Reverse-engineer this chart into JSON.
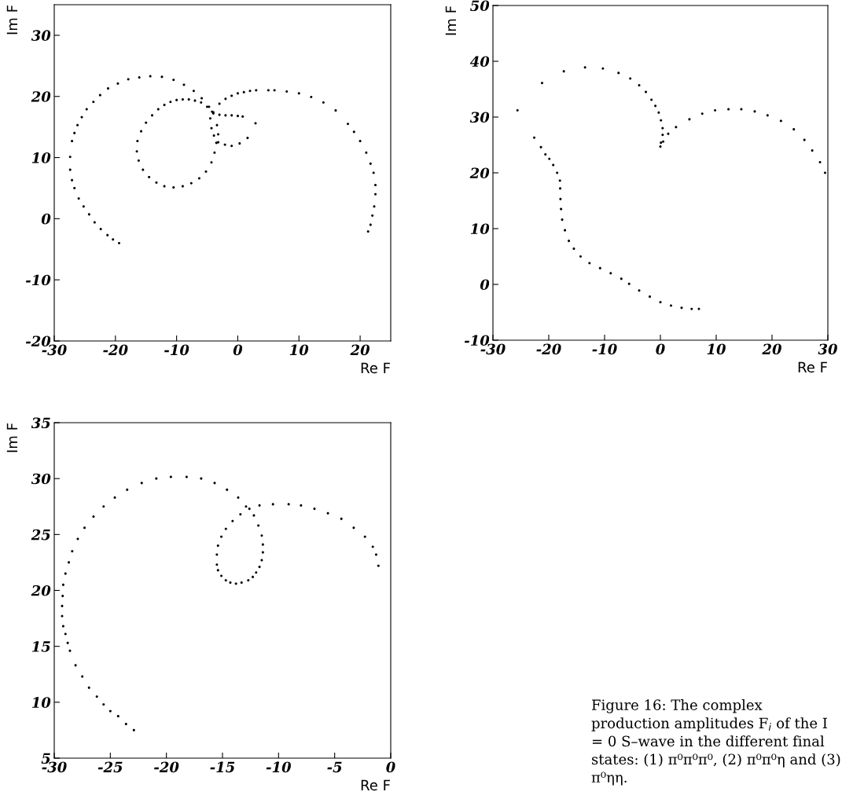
{
  "chart_data": [
    {
      "type": "scatter",
      "xlabel": "Re F",
      "ylabel": "Im F",
      "xlim": [
        -30,
        25
      ],
      "ylim": [
        -20,
        35
      ],
      "xticks": [
        -30,
        -20,
        -10,
        0,
        10,
        20
      ],
      "yticks": [
        -20,
        -10,
        0,
        10,
        20,
        30
      ],
      "grid": false,
      "marker": "circle",
      "series": [
        {
          "color": "#000000",
          "x": [
            -19.4,
            -20.4,
            -21.3,
            -22.4,
            -23.4,
            -24.3,
            -25.2,
            -26.0,
            -26.7,
            -27.1,
            -27.4,
            -27.4,
            -27.1,
            -26.7,
            -26.2,
            -25.5,
            -24.7,
            -23.6,
            -22.5,
            -21.2,
            -19.6,
            -17.9,
            -16.1,
            -14.3,
            -12.4,
            -10.5,
            -8.8,
            -7.2,
            -5.9,
            -4.7,
            -4.2
          ],
          "values": [
            -4.0,
            -3.4,
            -2.7,
            -1.7,
            -0.6,
            0.7,
            2.0,
            3.3,
            5.0,
            6.3,
            8.0,
            10.1,
            12.7,
            14.0,
            15.3,
            16.6,
            17.9,
            19.1,
            20.2,
            21.3,
            22.1,
            22.8,
            23.1,
            23.3,
            23.2,
            22.7,
            21.9,
            20.9,
            19.7,
            18.3,
            17.5
          ]
        },
        {
          "color": "#000000",
          "x": [
            -5,
            -6,
            -7,
            -8,
            -9,
            -10,
            -11,
            -12,
            -13,
            -14,
            -15,
            -15.8,
            -16.4,
            -16.5,
            -16.2,
            -15.5,
            -14.5,
            -13.3,
            -12,
            -10.5,
            -9,
            -7.6,
            -6.3,
            -5.2,
            -4.3,
            -3.8,
            -3.5
          ],
          "values": [
            18.3,
            19,
            19.3,
            19.5,
            19.5,
            19.4,
            19.1,
            18.6,
            17.9,
            16.9,
            15.7,
            14.3,
            12.7,
            11,
            9.5,
            8,
            6.8,
            5.9,
            5.3,
            5.1,
            5.3,
            5.8,
            6.6,
            7.7,
            9.2,
            10.8,
            12.4
          ]
        },
        {
          "color": "#000000",
          "x": [
            -4.5,
            -4.3,
            -3.9,
            -3.2,
            -3.4,
            -3.2,
            -2.1,
            -1.0,
            0.3,
            1.6,
            2.9
          ],
          "values": [
            16.4,
            14.8,
            13.6,
            12.5,
            15.3,
            13.8,
            12.1,
            11.9,
            12.3,
            13.2,
            15.6
          ]
        },
        {
          "color": "#000000",
          "x": [
            -4,
            -3,
            -2,
            -1,
            0,
            0.8
          ],
          "values": [
            17.2,
            17.0,
            16.9,
            16.9,
            16.8,
            16.7
          ]
        },
        {
          "color": "#000000",
          "x": [
            -4,
            -3,
            -2,
            -1,
            0,
            1,
            2,
            3,
            5,
            6,
            8,
            10,
            12,
            14,
            16,
            18,
            19,
            20,
            21,
            21.7,
            22.2,
            22.5,
            22.5,
            22.3,
            22,
            21.7,
            21.3
          ],
          "values": [
            17.4,
            18.8,
            19.6,
            20.1,
            20.5,
            20.7,
            20.9,
            21.0,
            21.0,
            21.0,
            20.8,
            20.5,
            19.9,
            19.0,
            17.7,
            15.5,
            14.2,
            12.7,
            10.8,
            9,
            7.5,
            5.5,
            4,
            2,
            0.5,
            -1,
            -2.1
          ]
        }
      ]
    },
    {
      "type": "scatter",
      "xlabel": "Re F",
      "ylabel": "Im F",
      "xlim": [
        -30,
        30
      ],
      "ylim": [
        -10,
        50
      ],
      "xticks": [
        -30,
        -20,
        -10,
        0,
        10,
        20,
        30
      ],
      "yticks": [
        -10,
        0,
        10,
        20,
        30,
        40,
        50
      ],
      "grid": false,
      "marker": "circle",
      "series": [
        {
          "color": "#000000",
          "x": [
            -19.9,
            -20.6,
            -21.4,
            -22.6,
            -25.6,
            -21.2,
            -17.3,
            -13.5,
            -10.3,
            -7.5,
            -5.4,
            -3.8,
            -2.6,
            -1.6,
            -0.9,
            -0.3,
            0.1,
            0.4,
            0.4,
            0.1,
            0
          ],
          "values": [
            22.5,
            23.3,
            24.6,
            26.3,
            31.2,
            36.1,
            38.2,
            38.9,
            38.7,
            37.9,
            36.9,
            35.7,
            34.5,
            33.1,
            32.0,
            30.8,
            29.4,
            28.0,
            26.8,
            25.4,
            24.7
          ]
        },
        {
          "color": "#000000",
          "x": [
            0.5,
            1.4,
            2.8,
            5.2,
            7.5,
            9.8,
            12.2,
            14.5,
            16.9,
            19.2,
            21.6,
            23.9,
            25.8,
            27.2,
            28.6,
            29.5
          ],
          "values": [
            25.6,
            27.0,
            28.2,
            29.6,
            30.6,
            31.2,
            31.4,
            31.4,
            31.0,
            30.3,
            29.3,
            27.8,
            25.9,
            24.0,
            21.9,
            20.0
          ]
        },
        {
          "color": "#000000",
          "x": [
            -19.2,
            -18.5,
            -18.0,
            -17.95,
            -17.9,
            -17.8,
            -17.6,
            -17.1,
            -16.4,
            -15.5,
            -14.3,
            -12.7,
            -10.8,
            -8.9,
            -7.0,
            -5.6,
            -3.8,
            -1.9,
            0,
            1.9,
            3.8,
            5.6,
            6.9
          ],
          "values": [
            21.4,
            20.0,
            18.6,
            17.2,
            15.3,
            13.5,
            11.6,
            9.7,
            7.8,
            6.4,
            5.0,
            3.8,
            2.9,
            2.0,
            1.0,
            0.1,
            -1.1,
            -2.2,
            -3.2,
            -3.8,
            -4.2,
            -4.4,
            -4.4
          ]
        }
      ]
    },
    {
      "type": "scatter",
      "xlabel": "Re F",
      "ylabel": "Im F",
      "xlim": [
        -30,
        0
      ],
      "ylim": [
        5,
        35
      ],
      "xticks": [
        -30,
        -25,
        -20,
        -15,
        -10,
        -5,
        0
      ],
      "yticks": [
        5,
        10,
        15,
        20,
        25,
        30,
        35
      ],
      "grid": false,
      "marker": "circle",
      "annotations": [
        "Figure 16: The complex production amplitudes F$_{i}$ of the I = 0 S–wave in the different final states: (1) π⁰π⁰π⁰, (2) π⁰π⁰η and (3) π⁰ηη."
      ],
      "series": [
        {
          "color": "#000000",
          "x": [
            -22.9,
            -23.6,
            -24.3,
            -25.0,
            -25.6,
            -26.2,
            -26.9,
            -27.5,
            -28.1,
            -28.6,
            -28.8,
            -29.0,
            -29.2,
            -29.3,
            -29.3,
            -29.25,
            -29.2,
            -29.0,
            -28.7,
            -28.4,
            -27.9,
            -27.3,
            -26.5,
            -25.6,
            -24.6,
            -23.5,
            -22.2,
            -20.9,
            -19.6,
            -18.2,
            -16.9,
            -15.7,
            -14.6,
            -13.6,
            -12.9,
            -12.2,
            -11.8,
            -11.5,
            -11.4,
            -11.4,
            -11.5,
            -11.7,
            -12.0,
            -12.3,
            -12.7,
            -13.3,
            -13.8,
            -14.3,
            -14.7,
            -15.1,
            -15.4,
            -15.5,
            -15.5,
            -15.4,
            -15.1,
            -14.7,
            -14.1,
            -13.4,
            -12.6,
            -11.7,
            -10.5,
            -9.1,
            -8.0,
            -6.8,
            -5.6,
            -4.4,
            -3.3,
            -2.3,
            -1.6,
            -1.3,
            -1.1
          ],
          "values": [
            7.5,
            8.05,
            8.75,
            9.2,
            9.8,
            10.5,
            11.3,
            12.3,
            13.3,
            14.6,
            15.3,
            16.1,
            16.8,
            17.7,
            18.6,
            19.5,
            20.5,
            21.5,
            22.5,
            23.5,
            24.6,
            25.6,
            26.6,
            27.5,
            28.3,
            29.0,
            29.6,
            30.0,
            30.15,
            30.15,
            30.0,
            29.6,
            29.0,
            28.3,
            27.5,
            26.7,
            25.8,
            24.9,
            24.1,
            23.4,
            22.7,
            22.1,
            21.6,
            21.2,
            20.9,
            20.7,
            20.6,
            20.7,
            20.9,
            21.3,
            21.8,
            22.3,
            23.2,
            24.0,
            24.8,
            25.5,
            26.2,
            26.8,
            27.3,
            27.6,
            27.7,
            27.7,
            27.6,
            27.3,
            26.9,
            26.4,
            25.6,
            24.8,
            23.9,
            23.2,
            22.2
          ]
        }
      ]
    }
  ]
}
